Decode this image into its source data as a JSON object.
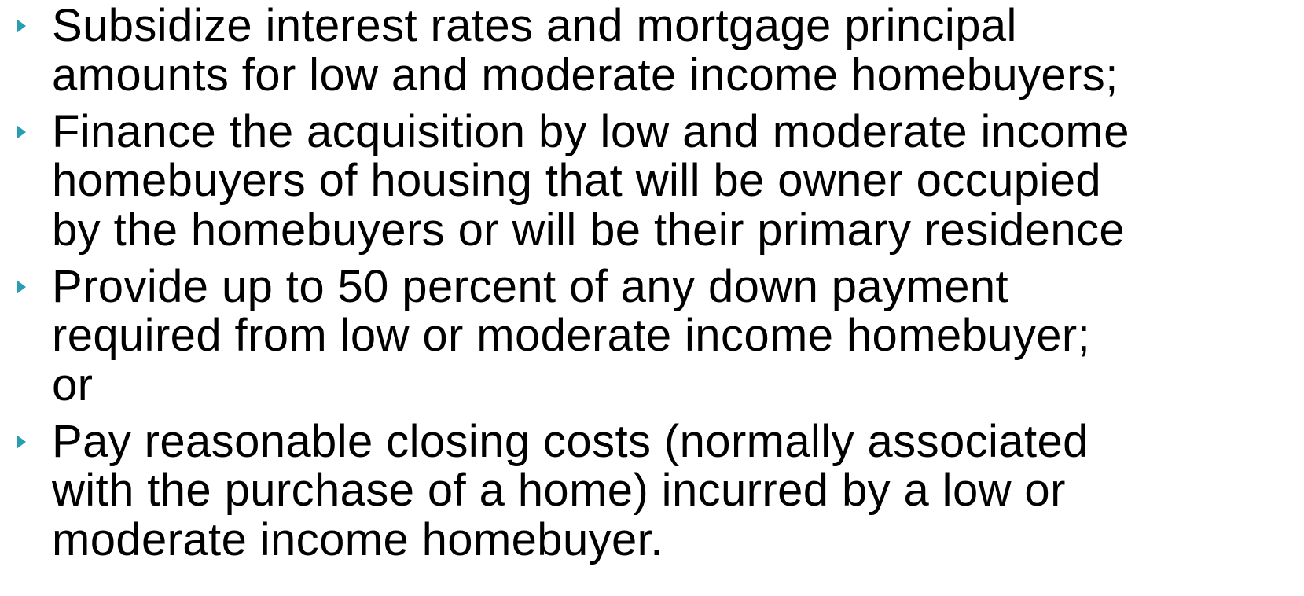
{
  "bullets": [
    {
      "lines": [
        "Subsidize interest rates and mortgage principal",
        "amounts for low and moderate income homebuyers;"
      ]
    },
    {
      "lines": [
        "Finance the acquisition by low and moderate income",
        "homebuyers of housing that will be owner occupied",
        "by the homebuyers or will be their primary residence"
      ]
    },
    {
      "lines": [
        "Provide up to 50 percent of any down payment",
        "required from low or moderate income homebuyer;",
        "or"
      ]
    },
    {
      "lines": [
        "Pay reasonable closing costs (normally associated",
        "with the purchase of a home) incurred by a low or",
        "moderate income homebuyer."
      ]
    }
  ]
}
